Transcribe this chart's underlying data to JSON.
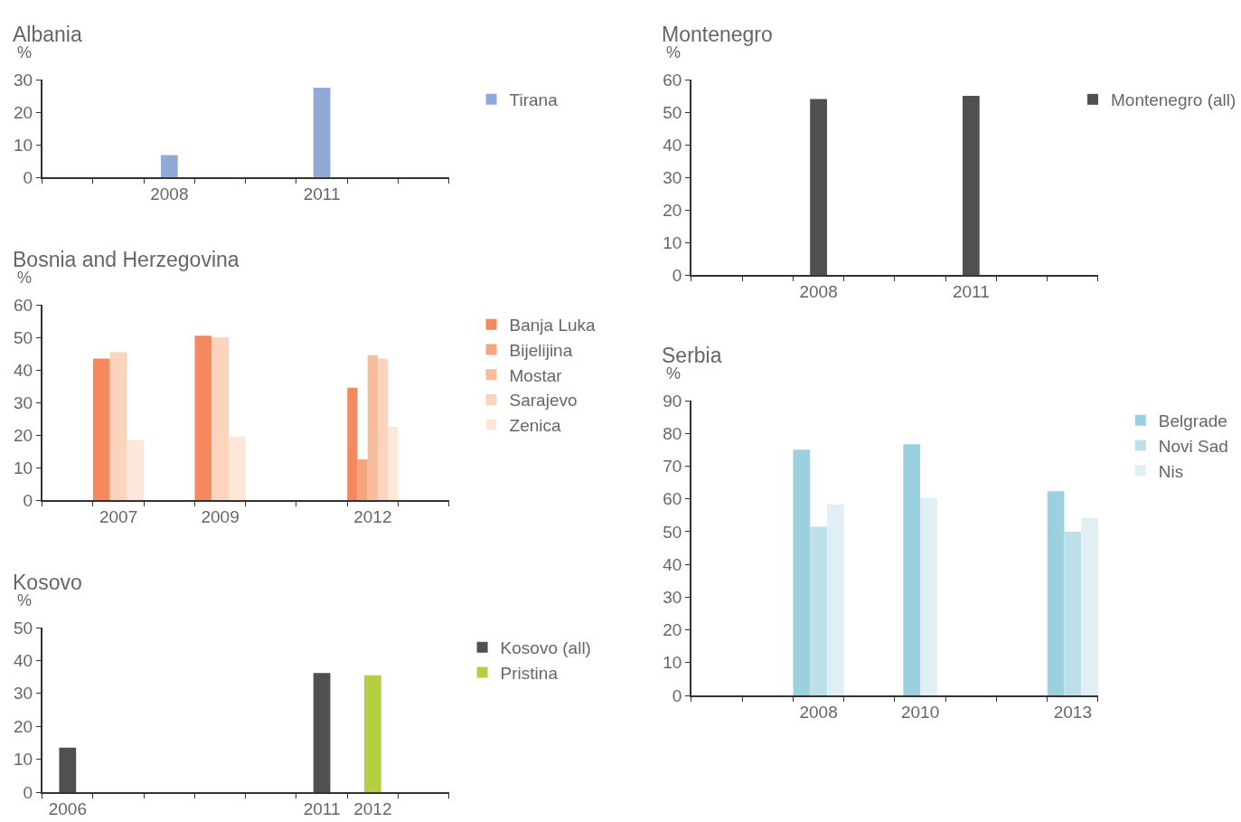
{
  "chart_data": [
    {
      "type": "bar",
      "title": "Albania",
      "ylabel": "%",
      "categories": [
        null,
        null,
        "2008",
        null,
        null,
        "2011",
        null,
        null
      ],
      "ylim": [
        0,
        30
      ],
      "yticks": [
        0,
        10,
        20,
        30
      ],
      "grid": false,
      "legend": "right",
      "series": [
        {
          "name": "Tirana",
          "color": "#8faad4",
          "values": [
            null,
            null,
            6.8,
            null,
            null,
            27.5,
            null,
            null
          ]
        }
      ]
    },
    {
      "type": "bar",
      "title": "Bosnia and Herzegovina",
      "ylabel": "%",
      "categories": [
        null,
        "2007",
        null,
        "2009",
        null,
        null,
        "2012",
        null
      ],
      "ylim": [
        0,
        60
      ],
      "yticks": [
        0,
        10,
        20,
        30,
        40,
        50,
        60
      ],
      "grid": false,
      "legend": "right",
      "series": [
        {
          "name": "Banja Luka",
          "color": "#f4895f",
          "values": [
            null,
            43.5,
            null,
            50.5,
            null,
            null,
            34.5,
            null
          ]
        },
        {
          "name": "Bijelijina",
          "color": "#f6a47e",
          "values": [
            null,
            null,
            null,
            null,
            null,
            null,
            12.5,
            null
          ]
        },
        {
          "name": "Mostar",
          "color": "#f9bc9c",
          "values": [
            null,
            null,
            null,
            null,
            null,
            null,
            44.5,
            null
          ]
        },
        {
          "name": "Sarajevo",
          "color": "#fcd3bc",
          "values": [
            null,
            45.5,
            null,
            50,
            null,
            null,
            43.5,
            null
          ]
        },
        {
          "name": "Zenica",
          "color": "#fde6da",
          "values": [
            null,
            18.5,
            null,
            19.5,
            null,
            null,
            22.5,
            null
          ]
        }
      ]
    },
    {
      "type": "bar",
      "title": "Kosovo",
      "ylabel": "%",
      "categories": [
        "2006",
        null,
        null,
        null,
        null,
        "2011",
        "2012",
        null
      ],
      "ylim": [
        0,
        50
      ],
      "yticks": [
        0,
        10,
        20,
        30,
        40,
        50
      ],
      "grid": false,
      "legend": "right",
      "series": [
        {
          "name": "Kosovo (all)",
          "color": "#505050",
          "values": [
            13.5,
            null,
            null,
            null,
            null,
            36.2,
            null,
            null
          ]
        },
        {
          "name": "Pristina",
          "color": "#b5cf45",
          "values": [
            null,
            null,
            null,
            null,
            null,
            null,
            35.5,
            null
          ]
        }
      ]
    },
    {
      "type": "bar",
      "title": "Montenegro",
      "ylabel": "%",
      "categories": [
        null,
        null,
        "2008",
        null,
        null,
        "2011",
        null,
        null
      ],
      "ylim": [
        0,
        60
      ],
      "yticks": [
        0,
        10,
        20,
        30,
        40,
        50,
        60
      ],
      "grid": false,
      "legend": "right",
      "series": [
        {
          "name": "Montenegro (all)",
          "color": "#505050",
          "values": [
            null,
            null,
            54,
            null,
            null,
            55,
            null,
            null
          ]
        }
      ]
    },
    {
      "type": "bar",
      "title": "Serbia",
      "ylabel": "%",
      "categories": [
        null,
        null,
        "2008",
        null,
        "2010",
        null,
        null,
        "2013"
      ],
      "ylim": [
        0,
        90
      ],
      "yticks": [
        0,
        10,
        20,
        30,
        40,
        50,
        60,
        70,
        80,
        90
      ],
      "grid": false,
      "legend": "right",
      "series": [
        {
          "name": "Belgrade",
          "color": "#9dd0de",
          "values": [
            null,
            null,
            75,
            null,
            76.7,
            null,
            null,
            62.3
          ]
        },
        {
          "name": "Novi Sad",
          "color": "#bcdfe8",
          "values": [
            null,
            null,
            51.5,
            null,
            null,
            null,
            null,
            50
          ]
        },
        {
          "name": "Nis",
          "color": "#dfeff4",
          "values": [
            null,
            null,
            58.3,
            null,
            60.3,
            null,
            null,
            54.2
          ]
        }
      ]
    }
  ]
}
